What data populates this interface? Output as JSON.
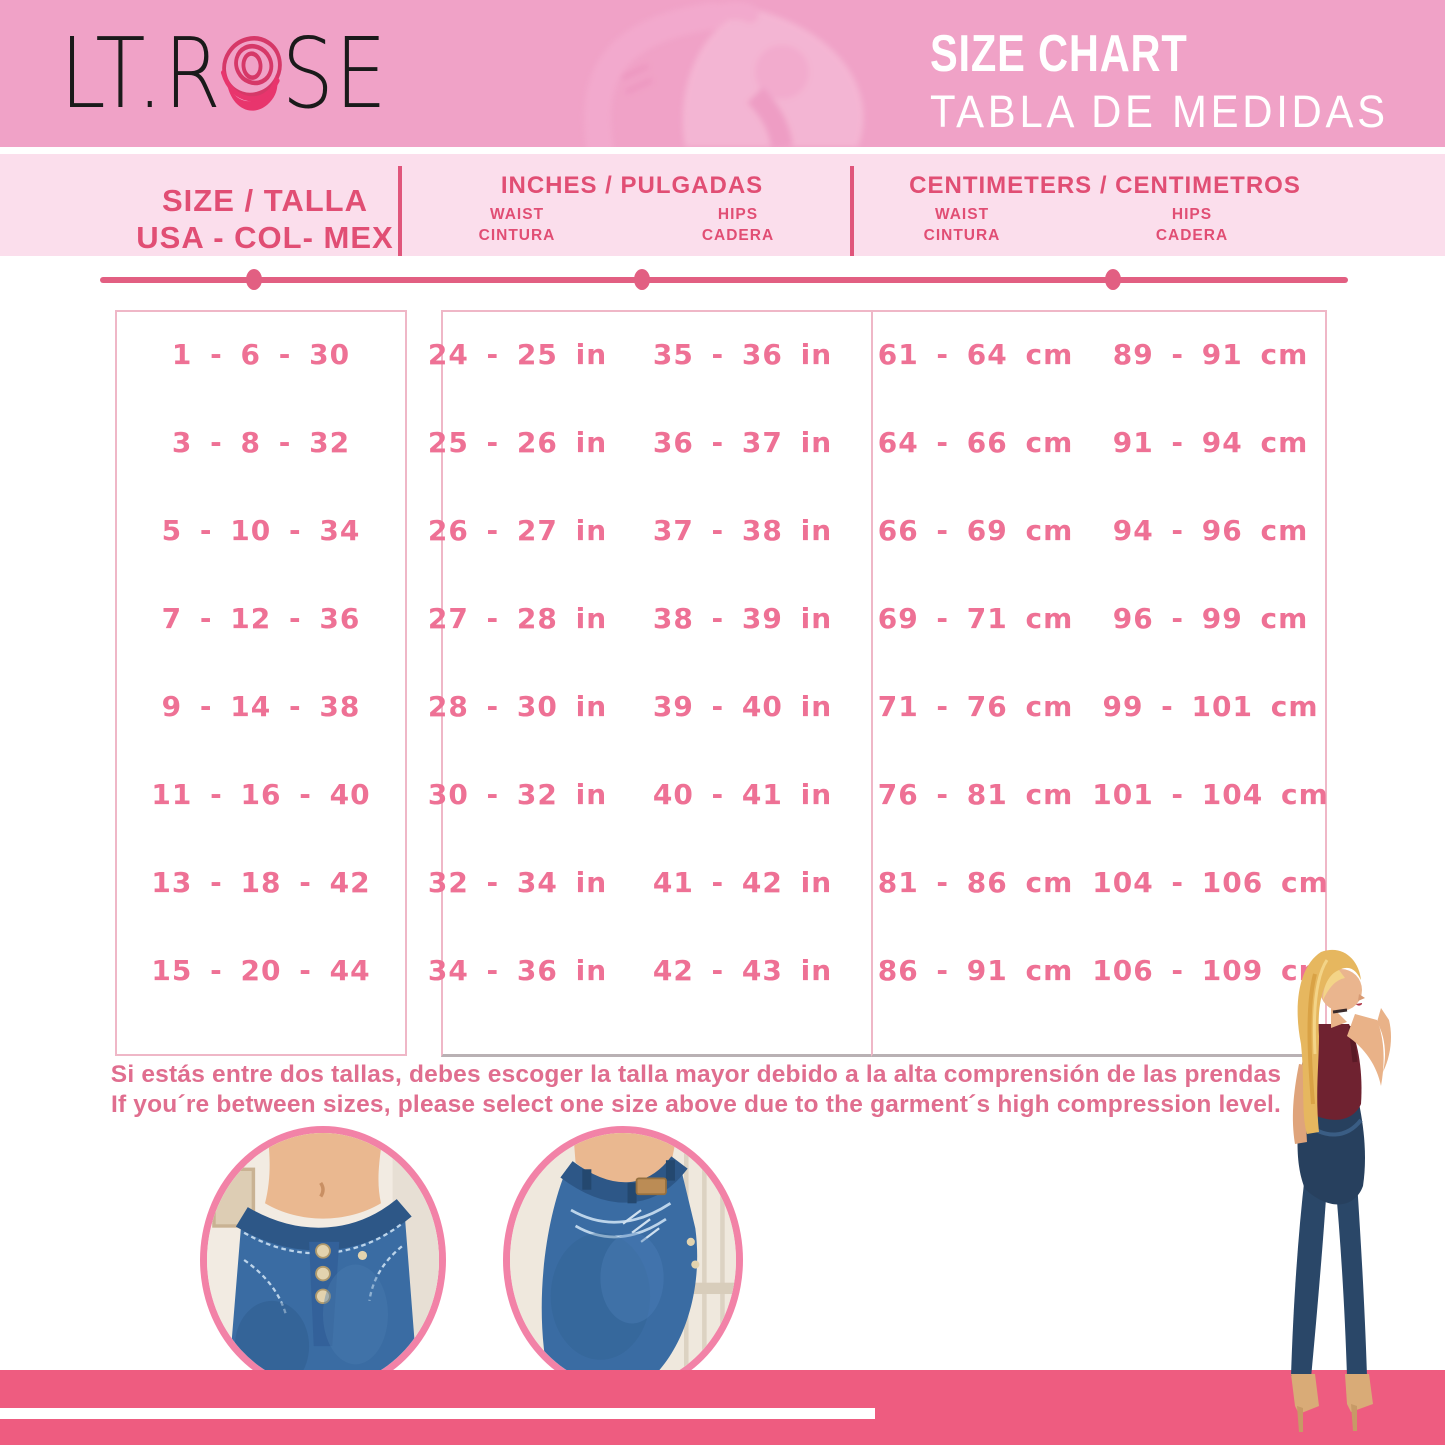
{
  "brand": {
    "logo_left": "LT.R",
    "logo_right": "SE"
  },
  "header": {
    "title_en": "SIZE CHART",
    "title_es": "TABLA DE MEDIDAS"
  },
  "table_headers": {
    "size_line1": "SIZE / TALLA",
    "size_line2": "USA - COL- MEX",
    "inches_title": "INCHES / PULGADAS",
    "cm_title": "CENTIMETERS / CENTIMETROS",
    "waist_en": "WAIST",
    "waist_es": "CINTURA",
    "hips_en": "HIPS",
    "hips_es": "CADERA"
  },
  "chart_data": {
    "type": "table",
    "columns": [
      "SIZE / TALLA USA - COL- MEX",
      "WAIST INCHES",
      "HIPS INCHES",
      "WAIST CM",
      "HIPS CM"
    ],
    "rows": [
      [
        "1 - 6 - 30",
        "24 - 25 in",
        "35 - 36 in",
        "61 - 64 cm",
        "89 - 91 cm"
      ],
      [
        "3 - 8 - 32",
        "25 - 26 in",
        "36 - 37 in",
        "64 - 66 cm",
        "91 - 94 cm"
      ],
      [
        "5 - 10 - 34",
        "26 - 27 in",
        "37 - 38 in",
        "66 - 69 cm",
        "94 - 96 cm"
      ],
      [
        "7 - 12 - 36",
        "27 - 28 in",
        "38 - 39 in",
        "69 - 71 cm",
        "96 - 99 cm"
      ],
      [
        "9 - 14 - 38",
        "28 - 30 in",
        "39 - 40 in",
        "71 - 76 cm",
        "99 - 101 cm"
      ],
      [
        "11 - 16 - 40",
        "30 - 32 in",
        "40 - 41 in",
        "76 - 81 cm",
        "101 - 104 cm"
      ],
      [
        "13 - 18 - 42",
        "32 - 34 in",
        "41 - 42 in",
        "81 - 86 cm",
        "104 - 106 cm"
      ],
      [
        "15 - 20 - 44",
        "34 - 36 in",
        "42 - 43 in",
        "86 - 91 cm",
        "106 - 109 cm"
      ]
    ]
  },
  "note": {
    "line_es": "Si estás entre dos tallas, debes escoger la talla mayor debido a la alta comprensión de las prendas",
    "line_en": "If you´re between sizes, please select one size above due to the garment´s high compression level."
  },
  "colors": {
    "header_pink": "#f0a2c7",
    "band_pink": "#fbdeec",
    "accent_dark": "#e14e74",
    "rule_pink": "#e25f82",
    "table_text": "#ee7195",
    "note_text": "#e06e8f",
    "footer_pink": "#ee5c80",
    "circle_ring": "#f282a7",
    "logo_rose": "#e8356d"
  }
}
